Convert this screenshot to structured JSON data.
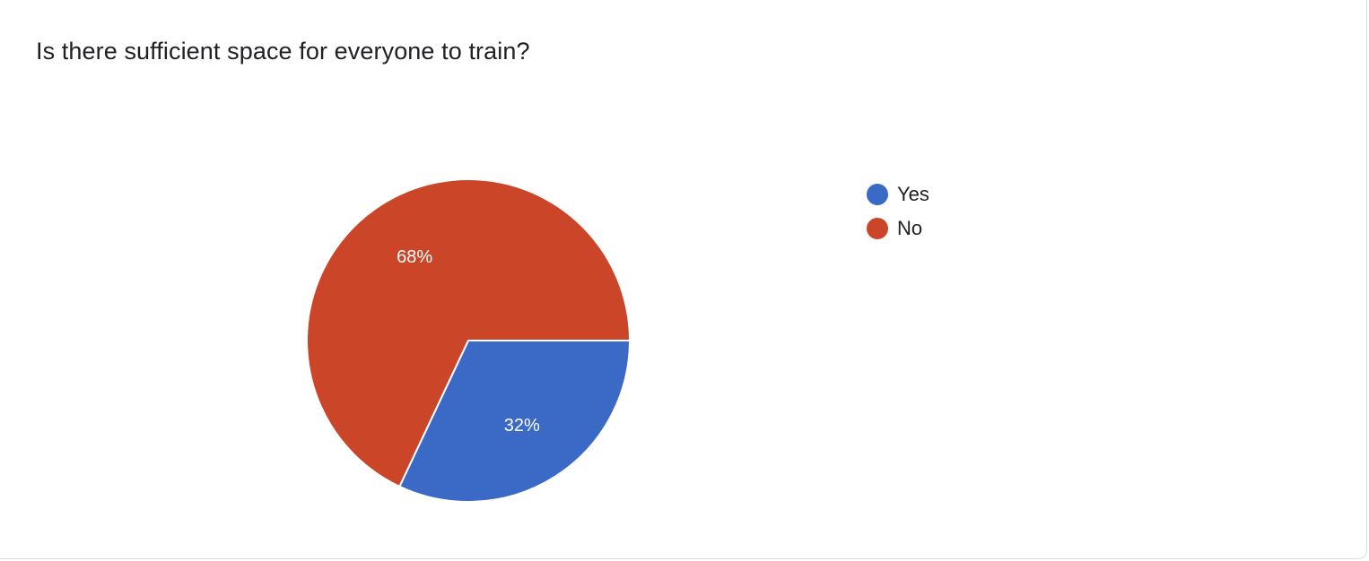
{
  "chart_data": {
    "type": "pie",
    "title": "Is there sufficient space for everyone to train?",
    "categories": [
      "Yes",
      "No"
    ],
    "values": [
      32,
      68
    ],
    "labels": [
      "32%",
      "68%"
    ],
    "colors": [
      "#3b69c6",
      "#cb4628"
    ],
    "legend_position": "right"
  }
}
